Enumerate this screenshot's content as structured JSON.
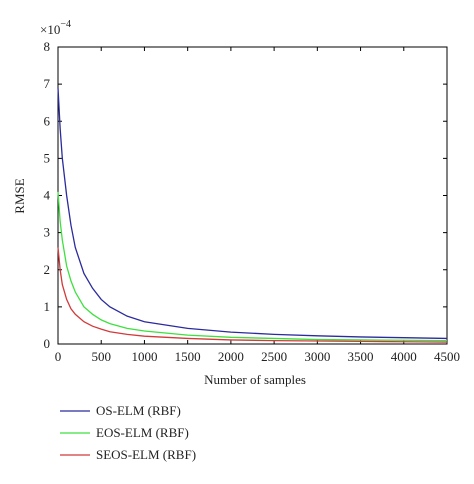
{
  "chart_data": {
    "type": "line",
    "y_label": "RMSE",
    "x_label": "Number of samples",
    "y_multiplier": {
      "base": "×10",
      "exponent": "−4"
    },
    "x": [
      0,
      25,
      50,
      100,
      150,
      200,
      300,
      400,
      500,
      600,
      800,
      1000,
      1500,
      2000,
      2500,
      3000,
      3500,
      4000,
      4500
    ],
    "series": [
      {
        "name": "OS-ELM (RBF)",
        "color": "#2b2b9e",
        "values": [
          6.9,
          5.8,
          5.0,
          4.0,
          3.2,
          2.6,
          1.9,
          1.5,
          1.2,
          1.0,
          0.75,
          0.6,
          0.42,
          0.32,
          0.26,
          0.22,
          0.19,
          0.17,
          0.15
        ]
      },
      {
        "name": "EOS-ELM (RBF)",
        "color": "#3ee03e",
        "values": [
          4.1,
          3.3,
          2.8,
          2.1,
          1.7,
          1.4,
          1.0,
          0.8,
          0.65,
          0.55,
          0.42,
          0.35,
          0.24,
          0.18,
          0.15,
          0.12,
          0.11,
          0.1,
          0.09
        ]
      },
      {
        "name": "SEOS-ELM (RBF)",
        "color": "#d23a3a",
        "values": [
          2.6,
          2.0,
          1.6,
          1.2,
          0.95,
          0.8,
          0.6,
          0.48,
          0.4,
          0.33,
          0.26,
          0.21,
          0.15,
          0.11,
          0.09,
          0.08,
          0.07,
          0.06,
          0.05
        ]
      }
    ],
    "xlim": [
      0,
      4500
    ],
    "xticks": [
      0,
      500,
      1000,
      1500,
      2000,
      2500,
      3000,
      3500,
      4000,
      4500
    ],
    "ylim": [
      0,
      8
    ],
    "yticks": [
      0,
      1,
      2,
      3,
      4,
      5,
      6,
      7,
      8
    ],
    "grid": false,
    "legend_position": "below"
  }
}
